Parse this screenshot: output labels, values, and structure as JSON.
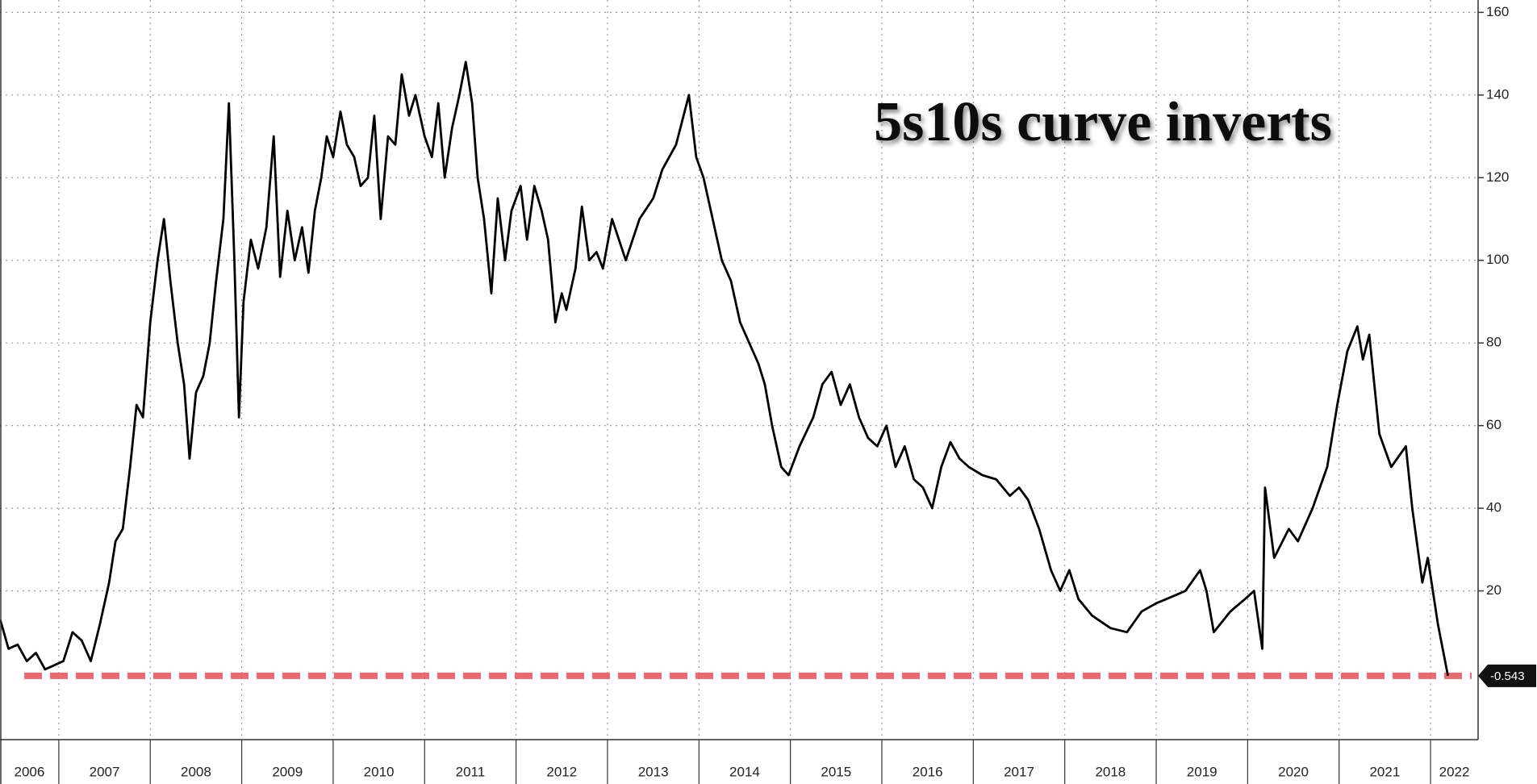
{
  "chart_data": {
    "type": "line",
    "title": "5s10s curve inverts",
    "color": "#000000",
    "last_line_color": "#e65c60",
    "grid": true,
    "xlim": [
      2006.357,
      2022.52
    ],
    "ylim": [
      -16,
      163
    ],
    "xticks": [
      2006,
      2007,
      2008,
      2009,
      2010,
      2011,
      2012,
      2013,
      2014,
      2015,
      2016,
      2017,
      2018,
      2019,
      2020,
      2021,
      2022
    ],
    "yticks": [
      20,
      40,
      60,
      80,
      100,
      120,
      140,
      160
    ],
    "x": [
      2006.36,
      2006.45,
      2006.55,
      2006.65,
      2006.75,
      2006.85,
      2006.95,
      2007.05,
      2007.15,
      2007.25,
      2007.35,
      2007.45,
      2007.55,
      2007.62,
      2007.7,
      2007.78,
      2007.85,
      2007.92,
      2008.0,
      2008.08,
      2008.15,
      2008.22,
      2008.3,
      2008.37,
      2008.43,
      2008.5,
      2008.58,
      2008.65,
      2008.72,
      2008.8,
      2008.86,
      2008.92,
      2008.97,
      2009.02,
      2009.1,
      2009.18,
      2009.27,
      2009.35,
      2009.42,
      2009.5,
      2009.58,
      2009.66,
      2009.73,
      2009.8,
      2009.87,
      2009.93,
      2010.0,
      2010.08,
      2010.15,
      2010.23,
      2010.3,
      2010.38,
      2010.45,
      2010.52,
      2010.6,
      2010.68,
      2010.75,
      2010.83,
      2010.9,
      2011.0,
      2011.08,
      2011.15,
      2011.22,
      2011.3,
      2011.38,
      2011.45,
      2011.52,
      2011.58,
      2011.65,
      2011.73,
      2011.8,
      2011.88,
      2011.95,
      2012.05,
      2012.12,
      2012.2,
      2012.28,
      2012.35,
      2012.43,
      2012.5,
      2012.55,
      2012.65,
      2012.72,
      2012.8,
      2012.88,
      2012.95,
      2013.05,
      2013.2,
      2013.35,
      2013.5,
      2013.6,
      2013.75,
      2013.89,
      2013.97,
      2014.05,
      2014.15,
      2014.25,
      2014.35,
      2014.45,
      2014.55,
      2014.65,
      2014.72,
      2014.8,
      2014.9,
      2014.98,
      2015.1,
      2015.25,
      2015.35,
      2015.45,
      2015.55,
      2015.65,
      2015.75,
      2015.85,
      2015.95,
      2016.05,
      2016.15,
      2016.25,
      2016.35,
      2016.45,
      2016.55,
      2016.65,
      2016.75,
      2016.85,
      2016.95,
      2017.1,
      2017.25,
      2017.4,
      2017.5,
      2017.6,
      2017.72,
      2017.85,
      2017.95,
      2018.05,
      2018.15,
      2018.3,
      2018.5,
      2018.68,
      2018.84,
      2019.0,
      2019.11,
      2019.32,
      2019.48,
      2019.55,
      2019.63,
      2019.81,
      2019.97,
      2020.07,
      2020.16,
      2020.19,
      2020.29,
      2020.45,
      2020.55,
      2020.71,
      2020.87,
      2020.98,
      2021.09,
      2021.2,
      2021.26,
      2021.33,
      2021.44,
      2021.57,
      2021.73,
      2021.8,
      2021.91,
      2021.97,
      2022.08,
      2022.19
    ],
    "values": [
      13,
      6,
      7,
      3,
      5,
      1,
      2,
      3,
      10,
      8,
      3,
      12,
      22,
      32,
      35,
      50,
      65,
      62,
      85,
      100,
      110,
      95,
      80,
      70,
      52,
      68,
      72,
      80,
      95,
      110,
      138,
      100,
      62,
      90,
      105,
      98,
      108,
      130,
      96,
      112,
      100,
      108,
      97,
      112,
      120,
      130,
      125,
      136,
      128,
      125,
      118,
      120,
      135,
      110,
      130,
      128,
      145,
      135,
      140,
      130,
      125,
      138,
      120,
      132,
      140,
      148,
      138,
      120,
      110,
      92,
      115,
      100,
      112,
      118,
      105,
      118,
      112,
      105,
      85,
      92,
      88,
      98,
      113,
      100,
      102,
      98,
      110,
      100,
      110,
      115,
      122,
      128,
      140,
      125,
      120,
      110,
      100,
      95,
      85,
      80,
      75,
      70,
      60,
      50,
      48,
      55,
      62,
      70,
      73,
      65,
      70,
      62,
      57,
      55,
      60,
      50,
      55,
      47,
      45,
      40,
      50,
      56,
      52,
      50,
      48,
      47,
      43,
      45,
      42,
      35,
      25,
      20,
      25,
      18,
      14,
      11,
      10,
      15,
      17,
      18,
      20,
      25,
      20,
      10,
      15,
      18,
      20,
      6,
      45,
      28,
      35,
      32,
      40,
      50,
      65,
      78,
      84,
      76,
      82,
      58,
      50,
      55,
      40,
      22,
      28,
      12,
      -0.543
    ]
  }
}
